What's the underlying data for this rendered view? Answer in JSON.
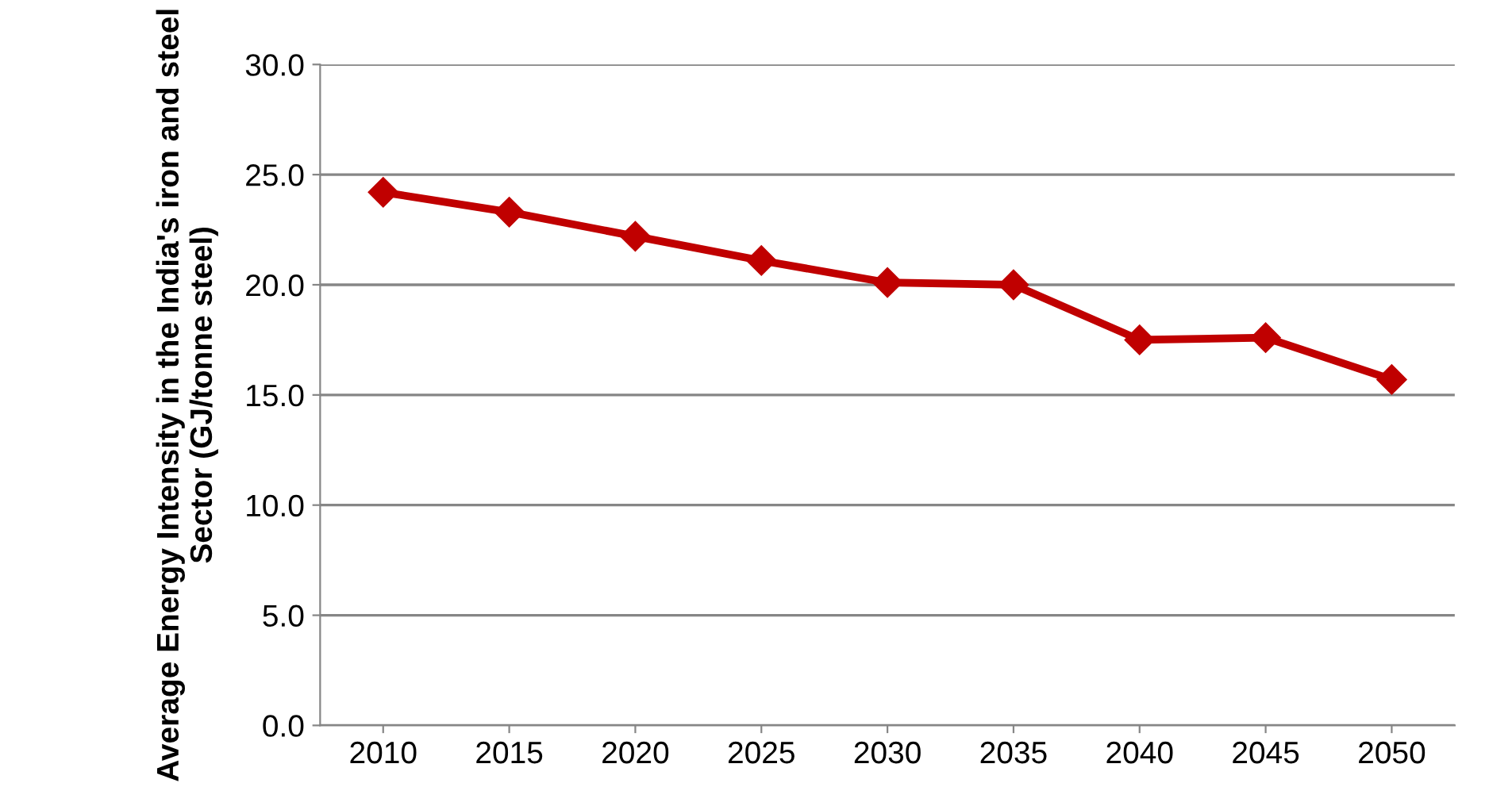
{
  "chart_data": {
    "type": "line",
    "ylabel": "Average Energy Intensity in the India's iron and steel Sector (GJ/tonne steel)",
    "categories": [
      "2010",
      "2015",
      "2020",
      "2025",
      "2030",
      "2035",
      "2040",
      "2045",
      "2050"
    ],
    "series": [
      {
        "color": "#c00000",
        "values": [
          24.2,
          23.3,
          22.2,
          21.1,
          20.1,
          20.0,
          17.5,
          17.6,
          15.7
        ]
      }
    ],
    "ylim": [
      0,
      30
    ],
    "yticks": [
      {
        "value": 0,
        "label": "0.0"
      },
      {
        "value": 5,
        "label": "5.0"
      },
      {
        "value": 10,
        "label": "10.0"
      },
      {
        "value": 15,
        "label": "15.0"
      },
      {
        "value": 20,
        "label": "20.0"
      },
      {
        "value": 25,
        "label": "25.0"
      },
      {
        "value": 30,
        "label": "30.0"
      }
    ],
    "grid": "y",
    "marker": "diamond",
    "line_style": "solid"
  }
}
